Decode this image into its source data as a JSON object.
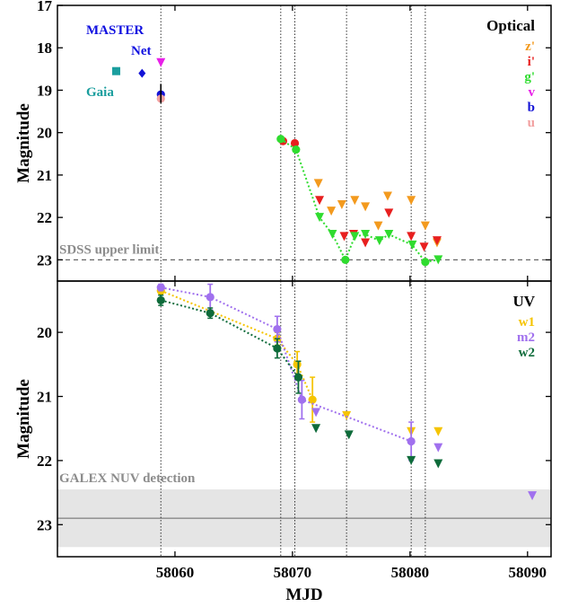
{
  "chart_data": [
    {
      "type": "scatter",
      "panel": "optical",
      "ylabel": "Magnitude",
      "ylim": [
        23.5,
        17
      ],
      "y_inverted": true,
      "yticks": [
        17,
        18,
        19,
        20,
        21,
        22,
        23
      ],
      "xlim": [
        58050,
        58092
      ],
      "legend_title": "Optical",
      "legend_position": "top-right",
      "vlines": [
        58058.8,
        58069.0,
        58070.2,
        58074.6,
        58080.1,
        58081.3
      ],
      "reference_line": {
        "label": "SDSS upper limit",
        "y": 23.0,
        "color": "#666666"
      },
      "annotations": [
        {
          "text": "MASTER",
          "color": "#1010e0"
        },
        {
          "text": "Net",
          "color": "#1010e0"
        },
        {
          "text": "Gaia",
          "color": "#1a9e9e"
        }
      ],
      "series": [
        {
          "name": "z'",
          "color": "#f39a1e",
          "detections": [],
          "upper_limits": [
            [
              58072.2,
              21.2
            ],
            [
              58073.3,
              21.85
            ],
            [
              58074.2,
              21.7
            ],
            [
              58075.3,
              21.6
            ],
            [
              58076.2,
              21.75
            ],
            [
              58077.3,
              22.2
            ],
            [
              58078.1,
              21.5
            ],
            [
              58080.1,
              21.6
            ],
            [
              58081.3,
              22.2
            ],
            [
              58082.3,
              22.6
            ]
          ]
        },
        {
          "name": "i'",
          "color": "#e81f1f",
          "detections": [
            [
              58069.2,
              20.2
            ],
            [
              58070.2,
              20.25
            ]
          ],
          "upper_limits": [
            [
              58072.3,
              21.6
            ],
            [
              58074.4,
              22.45
            ],
            [
              58075.2,
              22.4
            ],
            [
              58076.2,
              22.6
            ],
            [
              58078.2,
              21.9
            ],
            [
              58080.1,
              22.45
            ],
            [
              58081.2,
              22.7
            ],
            [
              58082.3,
              22.55
            ]
          ]
        },
        {
          "name": "g'",
          "color": "#2fdc2f",
          "detections": [
            [
              58069.0,
              20.15
            ],
            [
              58070.3,
              20.4
            ],
            [
              58074.5,
              23.0
            ],
            [
              58081.3,
              23.05
            ]
          ],
          "upper_limits": [
            [
              58072.3,
              22.0
            ],
            [
              58073.4,
              22.4
            ],
            [
              58075.3,
              22.45
            ],
            [
              58076.2,
              22.4
            ],
            [
              58077.4,
              22.55
            ],
            [
              58078.2,
              22.4
            ],
            [
              58080.2,
              22.65
            ],
            [
              58082.4,
              23.0
            ]
          ],
          "connected_path": [
            [
              58069.0,
              20.15
            ],
            [
              58070.3,
              20.4
            ],
            [
              58072.3,
              22.0
            ],
            [
              58073.4,
              22.4
            ],
            [
              58074.5,
              23.0
            ],
            [
              58075.3,
              22.45
            ],
            [
              58076.2,
              22.4
            ],
            [
              58077.4,
              22.55
            ],
            [
              58078.2,
              22.4
            ],
            [
              58080.2,
              22.65
            ],
            [
              58081.3,
              23.05
            ],
            [
              58082.4,
              23.0
            ]
          ]
        },
        {
          "name": "v",
          "color": "#e81fe8",
          "detections": [],
          "upper_limits": [
            [
              58058.8,
              18.35
            ]
          ]
        },
        {
          "name": "b",
          "color": "#1313d6",
          "detections": [
            [
              58057.2,
              18.6
            ],
            [
              58058.8,
              19.1
            ]
          ],
          "upper_limits": []
        },
        {
          "name": "u",
          "color": "#f2a0a0",
          "detections": [
            [
              58058.8,
              19.2
            ]
          ],
          "upper_limits": []
        },
        {
          "name": "",
          "color": "#1a9e9e",
          "detections": [
            [
              58055.0,
              18.55
            ]
          ],
          "upper_limits": []
        }
      ]
    },
    {
      "type": "scatter",
      "panel": "uv",
      "xlabel": "MJD",
      "ylabel": "Magnitude",
      "ylim": [
        23.5,
        19.2
      ],
      "y_inverted": true,
      "yticks": [
        20,
        21,
        22,
        23
      ],
      "xlim": [
        58050,
        58092
      ],
      "xticks": [
        58060,
        58070,
        58080,
        58090
      ],
      "legend_title": "UV",
      "legend_position": "top-right",
      "vlines": [
        58058.8,
        58069.0,
        58070.2,
        58074.6,
        58080.1,
        58081.3
      ],
      "reference_band": {
        "label": "GALEX NUV detection",
        "y": 22.9,
        "y_low": 22.45,
        "y_high": 23.35,
        "color": "#e5e5e5"
      },
      "series": [
        {
          "name": "w1",
          "color": "#f5c400",
          "detections": [
            [
              58058.8,
              19.35
            ],
            [
              58068.7,
              20.1
            ],
            [
              58070.4,
              20.5
            ],
            [
              58071.7,
              21.05
            ]
          ],
          "errors": [
            0.05,
            0.1,
            0.2,
            0.35
          ],
          "upper_limits": [
            [
              58074.6,
              21.3
            ],
            [
              58080.1,
              21.55
            ],
            [
              58082.4,
              21.55
            ]
          ]
        },
        {
          "name": "m2",
          "color": "#a070ee",
          "detections": [
            [
              58058.8,
              19.3
            ],
            [
              58063.0,
              19.45
            ],
            [
              58068.7,
              19.95
            ],
            [
              58070.8,
              21.05
            ],
            [
              58080.1,
              21.7
            ]
          ],
          "errors": [
            0.05,
            0.2,
            0.2,
            0.3,
            0.3
          ],
          "upper_limits": [
            [
              58072.0,
              21.25
            ],
            [
              58082.4,
              21.8
            ],
            [
              58090.4,
              22.55
            ]
          ]
        },
        {
          "name": "w2",
          "color": "#0e6b3a",
          "detections": [
            [
              58058.8,
              19.5
            ],
            [
              58063.0,
              19.7
            ],
            [
              58068.7,
              20.25
            ],
            [
              58070.5,
              20.7
            ]
          ],
          "errors": [
            0.08,
            0.08,
            0.15,
            0.25
          ],
          "upper_limits": [
            [
              58072.0,
              21.5
            ],
            [
              58074.8,
              21.6
            ],
            [
              58080.1,
              22.0
            ],
            [
              58082.4,
              22.05
            ]
          ]
        }
      ]
    }
  ]
}
